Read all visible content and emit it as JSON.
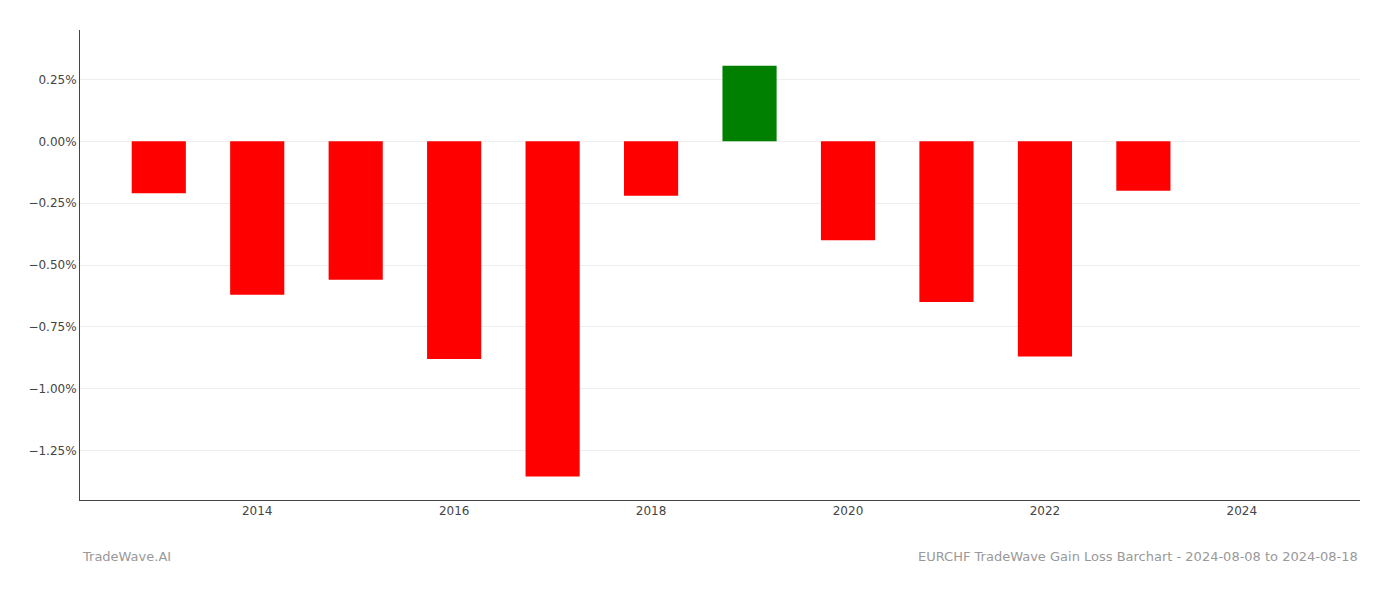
{
  "chart_data": {
    "type": "bar",
    "x": [
      2013,
      2014,
      2015,
      2016,
      2017,
      2018,
      2019,
      2020,
      2021,
      2022,
      2023
    ],
    "values": [
      -0.0021,
      -0.0062,
      -0.0056,
      -0.0088,
      -0.01355,
      -0.0022,
      0.00305,
      -0.004,
      -0.0065,
      -0.0087,
      -0.002
    ],
    "colors": [
      "#ff0000",
      "#ff0000",
      "#ff0000",
      "#ff0000",
      "#ff0000",
      "#ff0000",
      "#008000",
      "#ff0000",
      "#ff0000",
      "#ff0000",
      "#ff0000"
    ],
    "xlim": [
      2012.2,
      2025.2
    ],
    "xticks": [
      2014,
      2016,
      2018,
      2020,
      2022,
      2024
    ],
    "ylim": [
      -0.0145,
      0.0045
    ],
    "yticks": [
      {
        "value": -0.0125,
        "label": "−1.25%"
      },
      {
        "value": -0.01,
        "label": "−1.00%"
      },
      {
        "value": -0.0075,
        "label": "−0.75%"
      },
      {
        "value": -0.005,
        "label": "−0.50%"
      },
      {
        "value": -0.0025,
        "label": "−0.25%"
      },
      {
        "value": 0.0,
        "label": "0.00%"
      },
      {
        "value": 0.0025,
        "label": "0.25%"
      }
    ],
    "grid": true,
    "annotations": [
      "TradeWave.AI",
      "EURCHF TradeWave Gain Loss Barchart - 2024-08-08 to 2024-08-18"
    ]
  }
}
